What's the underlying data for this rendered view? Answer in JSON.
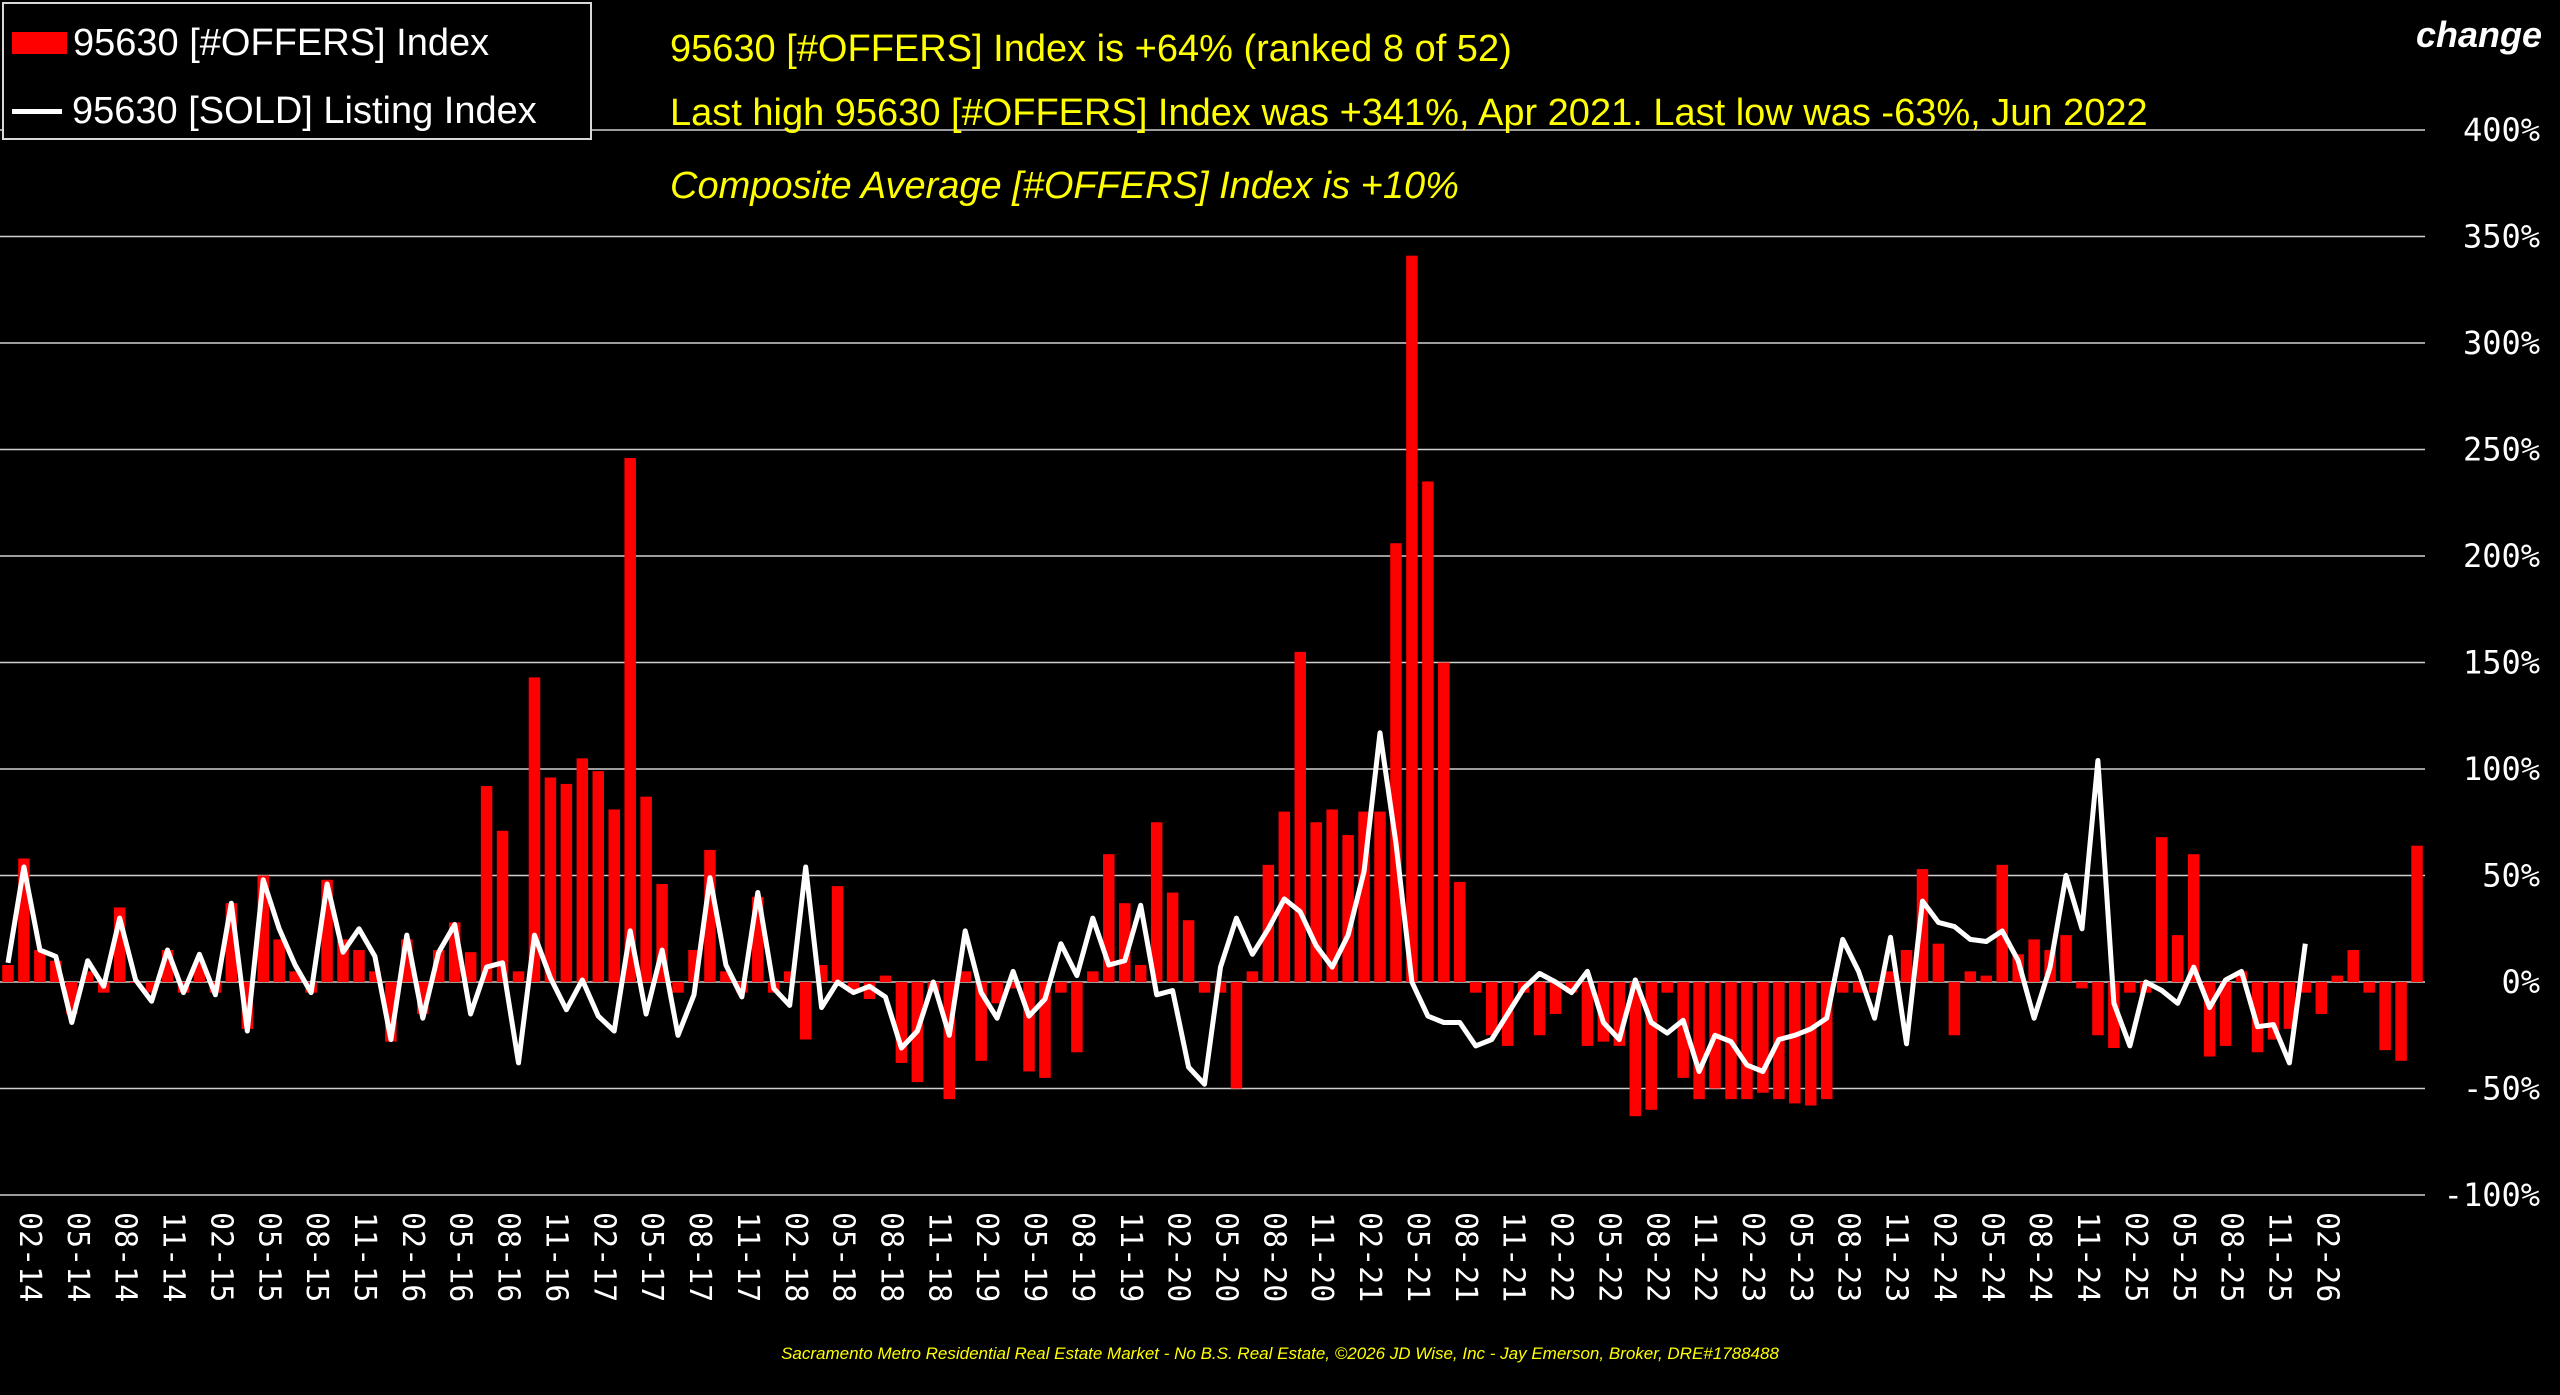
{
  "legend": {
    "bar_label": "95630 [#OFFERS] Index",
    "line_label": "95630 [SOLD] Listing Index"
  },
  "headlines": {
    "line1": "95630 [#OFFERS] Index is +64% (ranked 8 of 52)",
    "line2": "Last high 95630 [#OFFERS] Index was +341%, Apr 2021. Last low was -63%, Jun 2022",
    "line3": "Composite Average [#OFFERS] Index is +10%"
  },
  "corner_label": "change",
  "footer": "Sacramento Metro Residential Real Estate Market - No B.S. Real Estate, ©2026 JD Wise, Inc - Jay Emerson, Broker, DRE#1788488",
  "colors": {
    "bar": "#ff0000",
    "line": "#ffffff",
    "text_accent": "#ffff00",
    "background": "#000000",
    "grid": "#d0d0d0"
  },
  "chart_data": {
    "type": "bar",
    "ylim": [
      -100,
      400
    ],
    "y_ticks": [
      -100,
      -50,
      0,
      50,
      100,
      150,
      200,
      250,
      300,
      350,
      400
    ],
    "y_tick_labels": [
      "-100%",
      "-50%",
      "0%",
      "50%",
      "100%",
      "150%",
      "200%",
      "250%",
      "300%",
      "350%",
      "400%"
    ],
    "x_start": "2014-02",
    "x_tick_labels": [
      "02-14",
      "05-14",
      "08-14",
      "11-14",
      "02-15",
      "05-15",
      "08-15",
      "11-15",
      "02-16",
      "05-16",
      "08-16",
      "11-16",
      "02-17",
      "05-17",
      "08-17",
      "11-17",
      "02-18",
      "05-18",
      "08-18",
      "11-18",
      "02-19",
      "05-19",
      "08-19",
      "11-19",
      "02-20",
      "05-20",
      "08-20",
      "11-20",
      "02-21",
      "05-21",
      "08-21",
      "11-21",
      "02-22",
      "05-22",
      "08-22",
      "11-22",
      "02-23",
      "05-23",
      "08-23",
      "11-23",
      "02-24",
      "05-24",
      "08-24",
      "11-24",
      "02-25",
      "05-25",
      "08-25",
      "11-25",
      "02-26"
    ],
    "series": [
      {
        "name": "95630 [#OFFERS] Index",
        "type": "bar",
        "values": [
          8,
          58,
          15,
          10,
          -15,
          5,
          -5,
          35,
          0,
          -5,
          15,
          -5,
          10,
          -5,
          37,
          -22,
          50,
          20,
          5,
          -5,
          48,
          20,
          15,
          5,
          -28,
          20,
          -15,
          15,
          28,
          14,
          92,
          71,
          5,
          143,
          96,
          93,
          105,
          99,
          81,
          246,
          87,
          46,
          -5,
          15,
          62,
          5,
          -5,
          40,
          -5,
          5,
          -27,
          8,
          45,
          -5,
          -8,
          3,
          -38,
          -47,
          -5,
          -55,
          5,
          -37,
          -10,
          -3,
          -42,
          -45,
          -5,
          -33,
          5,
          60,
          37,
          8,
          75,
          42,
          29,
          -5,
          -5,
          -50,
          5,
          55,
          80,
          155,
          75,
          81,
          69,
          80,
          80,
          206,
          341,
          235,
          150,
          47,
          -5,
          -25,
          -30,
          -5,
          -25,
          -15,
          -5,
          -30,
          -28,
          -30,
          -63,
          -60,
          -5,
          -45,
          -55,
          -50,
          -55,
          -55,
          -52,
          -55,
          -57,
          -58,
          -55,
          -5,
          -5,
          -5,
          5,
          15,
          53,
          18,
          -25,
          5,
          3,
          55,
          13,
          20,
          15,
          22,
          -3,
          -25,
          -31,
          -5,
          -5,
          68,
          22,
          60,
          -35,
          -30,
          5,
          -33,
          -27,
          -22,
          -5,
          -15,
          3,
          15,
          -5,
          -32,
          -37,
          64
        ]
      },
      {
        "name": "95630 [SOLD] Listing Index",
        "type": "line",
        "values": [
          9,
          54,
          15,
          12,
          -19,
          10,
          -2,
          30,
          1,
          -9,
          15,
          -5,
          13,
          -6,
          37,
          -23,
          48,
          25,
          8,
          -5,
          46,
          14,
          25,
          12,
          -27,
          22,
          -17,
          14,
          27,
          -15,
          7,
          9,
          -38,
          22,
          2,
          -13,
          1,
          -16,
          -23,
          24,
          -15,
          15,
          -25,
          -6,
          49,
          8,
          -7,
          42,
          -3,
          -11,
          54,
          -12,
          0,
          -5,
          -2,
          -7,
          -31,
          -23,
          0,
          -25,
          24,
          -5,
          -17,
          5,
          -16,
          -8,
          18,
          3,
          30,
          8,
          10,
          36,
          -6,
          -4,
          -40,
          -48,
          7,
          30,
          13,
          25,
          39,
          33,
          17,
          7,
          22,
          52,
          117,
          65,
          0,
          -16,
          -19,
          -19,
          -30,
          -27,
          -15,
          -3,
          4,
          0,
          -5,
          5,
          -19,
          -27,
          1,
          -19,
          -24,
          -18,
          -42,
          -25,
          -28,
          -39,
          -42,
          -27,
          -25,
          -22,
          -17,
          20,
          5,
          -17,
          21,
          -29,
          38,
          28,
          26,
          20,
          19,
          24,
          10,
          -17,
          7,
          50,
          25,
          104,
          -10,
          -30,
          0,
          -4,
          -10,
          7,
          -12,
          1,
          5,
          -21,
          -20,
          -38,
          18
        ]
      }
    ]
  }
}
